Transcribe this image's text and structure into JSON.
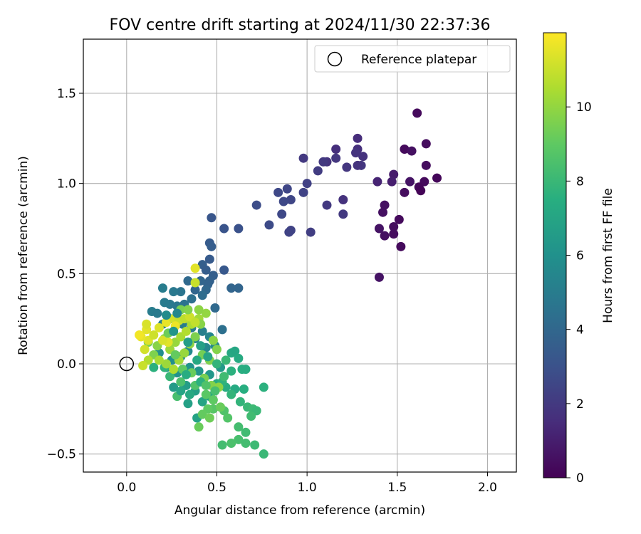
{
  "chart_data": {
    "type": "scatter",
    "title": "FOV centre drift starting at 2024/11/30 22:37:36",
    "xlabel": "Angular distance from reference (arcmin)",
    "ylabel": "Rotation from reference (arcmin)",
    "xlim": [
      -0.24,
      2.16
    ],
    "ylim": [
      -0.6,
      1.8
    ],
    "x_ticks": [
      0.0,
      0.5,
      1.0,
      1.5,
      2.0
    ],
    "x_tick_labels": [
      "0.0",
      "0.5",
      "1.0",
      "1.5",
      "2.0"
    ],
    "y_ticks": [
      -0.5,
      0.0,
      0.5,
      1.0,
      1.5
    ],
    "y_tick_labels": [
      "−0.5",
      "0.0",
      "0.5",
      "1.0",
      "1.5"
    ],
    "grid": true,
    "legend": {
      "placement": "top-right",
      "entries": [
        "Reference platepar"
      ]
    },
    "reference_point": {
      "label": "Reference platepar",
      "x": 0.0,
      "y": 0.0,
      "marker": "hollow-circle"
    },
    "colorbar": {
      "label": "Hours from first FF file",
      "colormap": "viridis",
      "range": [
        0,
        12
      ],
      "ticks": [
        0,
        2,
        4,
        6,
        8,
        10
      ],
      "tick_labels": [
        "0",
        "2",
        "4",
        "6",
        "8",
        "10"
      ]
    },
    "points": [
      [
        1.61,
        1.39,
        0.3
      ],
      [
        1.54,
        1.19,
        0.3
      ],
      [
        1.66,
        1.22,
        0.4
      ],
      [
        1.58,
        1.18,
        0.5
      ],
      [
        1.66,
        1.1,
        0.4
      ],
      [
        1.72,
        1.03,
        0.2
      ],
      [
        1.65,
        1.01,
        0.3
      ],
      [
        1.57,
        1.01,
        0.6
      ],
      [
        1.62,
        0.98,
        0.2
      ],
      [
        1.63,
        0.96,
        0.1
      ],
      [
        1.54,
        0.95,
        0.4
      ],
      [
        1.48,
        1.05,
        0.9
      ],
      [
        1.47,
        1.01,
        1.0
      ],
      [
        1.39,
        1.01,
        1.2
      ],
      [
        1.43,
        0.88,
        0.5
      ],
      [
        1.42,
        0.84,
        0.5
      ],
      [
        1.51,
        0.8,
        0.3
      ],
      [
        1.48,
        0.76,
        0.4
      ],
      [
        1.4,
        0.75,
        0.6
      ],
      [
        1.48,
        0.72,
        0.4
      ],
      [
        1.43,
        0.71,
        0.5
      ],
      [
        1.52,
        0.65,
        0.3
      ],
      [
        1.4,
        0.48,
        0.6
      ],
      [
        1.28,
        1.25,
        1.5
      ],
      [
        1.28,
        1.19,
        1.6
      ],
      [
        1.31,
        1.15,
        1.7
      ],
      [
        1.27,
        1.17,
        1.8
      ],
      [
        1.3,
        1.1,
        1.9
      ],
      [
        1.28,
        1.1,
        1.8
      ],
      [
        1.22,
        1.09,
        1.9
      ],
      [
        1.16,
        1.19,
        1.6
      ],
      [
        1.16,
        1.14,
        1.9
      ],
      [
        1.11,
        1.12,
        1.8
      ],
      [
        1.09,
        1.12,
        2.0
      ],
      [
        1.06,
        1.07,
        2.1
      ],
      [
        0.98,
        1.14,
        2.0
      ],
      [
        1.0,
        1.0,
        2.3
      ],
      [
        0.98,
        0.95,
        2.4
      ],
      [
        1.2,
        0.91,
        1.7
      ],
      [
        1.11,
        0.88,
        2.0
      ],
      [
        1.2,
        0.83,
        2.0
      ],
      [
        0.89,
        0.97,
        2.5
      ],
      [
        0.84,
        0.95,
        2.6
      ],
      [
        0.91,
        0.91,
        2.5
      ],
      [
        0.87,
        0.9,
        2.6
      ],
      [
        0.86,
        0.83,
        2.6
      ],
      [
        0.72,
        0.88,
        2.8
      ],
      [
        0.79,
        0.77,
        2.7
      ],
      [
        0.91,
        0.74,
        2.4
      ],
      [
        0.9,
        0.73,
        2.4
      ],
      [
        1.02,
        0.73,
        2.2
      ],
      [
        0.62,
        0.75,
        3.0
      ],
      [
        0.54,
        0.75,
        3.1
      ],
      [
        0.47,
        0.81,
        3.2
      ],
      [
        0.46,
        0.67,
        3.4
      ],
      [
        0.47,
        0.65,
        3.5
      ],
      [
        0.46,
        0.58,
        3.4
      ],
      [
        0.42,
        0.55,
        3.6
      ],
      [
        0.44,
        0.52,
        3.5
      ],
      [
        0.48,
        0.49,
        3.6
      ],
      [
        0.46,
        0.46,
        3.7
      ],
      [
        0.54,
        0.52,
        3.3
      ],
      [
        0.45,
        0.44,
        3.8
      ],
      [
        0.41,
        0.46,
        3.9
      ],
      [
        0.44,
        0.41,
        4.0
      ],
      [
        0.38,
        0.41,
        3.9
      ],
      [
        0.34,
        0.46,
        4.1
      ],
      [
        0.58,
        0.42,
        3.9
      ],
      [
        0.62,
        0.42,
        3.9
      ],
      [
        0.49,
        0.31,
        4.1
      ],
      [
        0.53,
        0.19,
        4.4
      ],
      [
        0.42,
        0.38,
        4.2
      ],
      [
        0.36,
        0.36,
        4.4
      ],
      [
        0.3,
        0.4,
        4.6
      ],
      [
        0.26,
        0.4,
        4.8
      ],
      [
        0.2,
        0.42,
        5.0
      ],
      [
        0.32,
        0.33,
        4.5
      ],
      [
        0.28,
        0.32,
        4.7
      ],
      [
        0.24,
        0.33,
        4.8
      ],
      [
        0.21,
        0.34,
        4.9
      ],
      [
        0.14,
        0.29,
        5.0
      ],
      [
        0.17,
        0.28,
        4.9
      ],
      [
        0.2,
        0.22,
        5.1
      ],
      [
        0.24,
        0.25,
        5.2
      ],
      [
        0.28,
        0.25,
        5.0
      ],
      [
        0.31,
        0.22,
        5.0
      ],
      [
        0.36,
        0.2,
        5.1
      ],
      [
        0.38,
        0.14,
        5.3
      ],
      [
        0.42,
        0.18,
        5.2
      ],
      [
        0.46,
        0.15,
        5.4
      ],
      [
        0.49,
        0.1,
        5.6
      ],
      [
        0.44,
        0.09,
        5.5
      ],
      [
        0.34,
        0.07,
        5.6
      ],
      [
        0.3,
        0.04,
        5.8
      ],
      [
        0.25,
        0.02,
        5.9
      ],
      [
        0.22,
        -0.02,
        6.0
      ],
      [
        0.18,
        0.06,
        5.8
      ],
      [
        0.28,
        -0.05,
        6.1
      ],
      [
        0.35,
        -0.02,
        6.1
      ],
      [
        0.4,
        -0.04,
        6.2
      ],
      [
        0.46,
        -0.06,
        6.3
      ],
      [
        0.52,
        -0.02,
        6.4
      ],
      [
        0.26,
        -0.13,
        6.5
      ],
      [
        0.33,
        -0.12,
        6.6
      ],
      [
        0.38,
        -0.15,
        6.7
      ],
      [
        0.34,
        -0.22,
        6.8
      ],
      [
        0.39,
        -0.3,
        6.9
      ],
      [
        0.42,
        -0.21,
        7.0
      ],
      [
        0.46,
        -0.18,
        7.1
      ],
      [
        0.5,
        -0.11,
        7.3
      ],
      [
        0.55,
        -0.13,
        7.4
      ],
      [
        0.6,
        -0.14,
        7.3
      ],
      [
        0.65,
        -0.14,
        7.5
      ],
      [
        0.76,
        -0.13,
        7.6
      ],
      [
        0.58,
        0.06,
        7.2
      ],
      [
        0.6,
        0.07,
        7.1
      ],
      [
        0.62,
        0.03,
        7.3
      ],
      [
        0.64,
        -0.03,
        7.5
      ],
      [
        0.66,
        -0.03,
        7.4
      ],
      [
        0.58,
        -0.04,
        7.6
      ],
      [
        0.53,
        -0.1,
        7.7
      ],
      [
        0.58,
        -0.17,
        7.8
      ],
      [
        0.63,
        -0.21,
        7.8
      ],
      [
        0.67,
        -0.24,
        8.0
      ],
      [
        0.7,
        -0.25,
        8.1
      ],
      [
        0.72,
        -0.26,
        8.0
      ],
      [
        0.69,
        -0.29,
        8.2
      ],
      [
        0.62,
        -0.35,
        8.3
      ],
      [
        0.66,
        -0.38,
        8.2
      ],
      [
        0.62,
        -0.42,
        8.4
      ],
      [
        0.66,
        -0.44,
        8.3
      ],
      [
        0.71,
        -0.45,
        8.1
      ],
      [
        0.58,
        -0.44,
        8.5
      ],
      [
        0.53,
        -0.45,
        8.3
      ],
      [
        0.76,
        -0.5,
        8.0
      ],
      [
        0.54,
        -0.26,
        8.6
      ],
      [
        0.56,
        -0.3,
        8.7
      ],
      [
        0.48,
        -0.25,
        8.8
      ],
      [
        0.45,
        -0.25,
        9.0
      ],
      [
        0.42,
        -0.28,
        9.1
      ],
      [
        0.4,
        -0.35,
        9.2
      ],
      [
        0.46,
        -0.3,
        9.3
      ],
      [
        0.52,
        -0.24,
        9.2
      ],
      [
        0.48,
        -0.2,
        9.0
      ],
      [
        0.44,
        -0.17,
        8.9
      ],
      [
        0.38,
        -0.12,
        8.6
      ],
      [
        0.3,
        -0.1,
        8.5
      ],
      [
        0.28,
        -0.18,
        8.4
      ],
      [
        0.24,
        -0.07,
        8.0
      ],
      [
        0.21,
        -0.02,
        7.8
      ],
      [
        0.15,
        -0.02,
        7.6
      ],
      [
        0.12,
        0.12,
        9.4
      ],
      [
        0.15,
        0.05,
        9.6
      ],
      [
        0.17,
        0.1,
        9.8
      ],
      [
        0.21,
        0.14,
        10.0
      ],
      [
        0.24,
        0.08,
        10.2
      ],
      [
        0.27,
        0.12,
        10.1
      ],
      [
        0.3,
        0.15,
        10.4
      ],
      [
        0.33,
        0.18,
        10.6
      ],
      [
        0.36,
        0.22,
        10.5
      ],
      [
        0.4,
        0.25,
        10.3
      ],
      [
        0.44,
        0.28,
        10.0
      ],
      [
        0.41,
        0.22,
        9.8
      ],
      [
        0.38,
        0.15,
        9.6
      ],
      [
        0.35,
        0.11,
        9.9
      ],
      [
        0.32,
        0.06,
        10.1
      ],
      [
        0.29,
        0.02,
        10.3
      ],
      [
        0.26,
        -0.03,
        10.5
      ],
      [
        0.22,
        0.0,
        10.2
      ],
      [
        0.18,
        0.02,
        10.4
      ],
      [
        0.12,
        0.02,
        10.6
      ],
      [
        0.09,
        -0.01,
        11.0
      ],
      [
        0.1,
        0.08,
        11.2
      ],
      [
        0.12,
        0.13,
        11.4
      ],
      [
        0.08,
        0.15,
        11.6
      ],
      [
        0.07,
        0.16,
        11.8
      ],
      [
        0.11,
        0.19,
        11.5
      ],
      [
        0.11,
        0.22,
        11.3
      ],
      [
        0.15,
        0.16,
        11.1
      ],
      [
        0.18,
        0.2,
        11.4
      ],
      [
        0.22,
        0.23,
        11.6
      ],
      [
        0.26,
        0.25,
        11.2
      ],
      [
        0.29,
        0.24,
        11.0
      ],
      [
        0.32,
        0.25,
        10.8
      ],
      [
        0.35,
        0.26,
        11.1
      ],
      [
        0.38,
        0.23,
        10.9
      ],
      [
        0.27,
        0.21,
        11.7
      ],
      [
        0.23,
        0.12,
        11.5
      ],
      [
        0.2,
        0.13,
        11.3
      ],
      [
        0.38,
        0.53,
        11.5
      ],
      [
        0.38,
        0.45,
        11.0
      ],
      [
        0.42,
        0.05,
        9.4
      ],
      [
        0.46,
        0.02,
        9.6
      ],
      [
        0.5,
        0.08,
        9.7
      ],
      [
        0.48,
        0.13,
        9.9
      ],
      [
        0.43,
        -0.08,
        9.5
      ],
      [
        0.47,
        -0.12,
        9.7
      ],
      [
        0.51,
        -0.13,
        9.9
      ],
      [
        0.36,
        -0.05,
        9.2
      ],
      [
        0.31,
        -0.03,
        9.0
      ],
      [
        0.27,
        0.05,
        9.1
      ],
      [
        0.23,
        0.17,
        9.3
      ],
      [
        0.3,
        0.3,
        9.5
      ],
      [
        0.34,
        0.3,
        9.7
      ],
      [
        0.4,
        0.3,
        9.9
      ],
      [
        0.28,
        0.28,
        5.5
      ],
      [
        0.22,
        0.27,
        5.7
      ],
      [
        0.26,
        0.18,
        6.2
      ],
      [
        0.34,
        0.12,
        6.6
      ],
      [
        0.41,
        0.1,
        6.8
      ],
      [
        0.45,
        0.04,
        7.0
      ],
      [
        0.39,
        0.02,
        7.2
      ],
      [
        0.33,
        -0.06,
        7.4
      ],
      [
        0.3,
        -0.15,
        7.0
      ],
      [
        0.35,
        -0.17,
        7.2
      ],
      [
        0.41,
        -0.1,
        7.6
      ],
      [
        0.5,
        0.0,
        7.8
      ],
      [
        0.55,
        0.02,
        8.0
      ],
      [
        0.54,
        -0.07,
        8.2
      ],
      [
        0.49,
        -0.15,
        8.4
      ],
      [
        0.44,
        -0.12,
        8.6
      ]
    ]
  }
}
